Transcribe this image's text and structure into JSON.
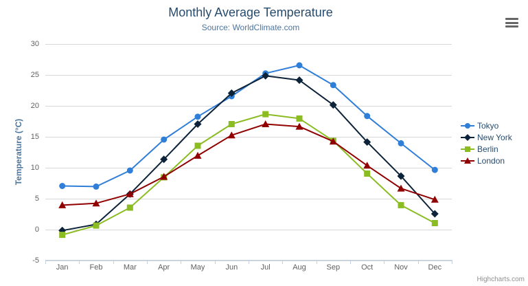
{
  "chart": {
    "context_button": "hamburger-menu"
  },
  "chart_data": {
    "type": "line",
    "title": "Monthly Average Temperature",
    "subtitle": "Source: WorldClimate.com",
    "xlabel": "",
    "ylabel": "Temperature (°C)",
    "ylim": [
      -5,
      30
    ],
    "yticks": [
      -5,
      0,
      5,
      10,
      15,
      20,
      25,
      30
    ],
    "grid": true,
    "legend_position": "right",
    "credits": "Highcharts.com",
    "categories": [
      "Jan",
      "Feb",
      "Mar",
      "Apr",
      "May",
      "Jun",
      "Jul",
      "Aug",
      "Sep",
      "Oct",
      "Nov",
      "Dec"
    ],
    "series": [
      {
        "name": "Tokyo",
        "color": "#2f7ed8",
        "marker": "circle",
        "values": [
          7.0,
          6.9,
          9.5,
          14.5,
          18.2,
          21.5,
          25.2,
          26.5,
          23.3,
          18.3,
          13.9,
          9.6
        ]
      },
      {
        "name": "New York",
        "color": "#0d233a",
        "marker": "diamond",
        "values": [
          -0.2,
          0.8,
          5.7,
          11.3,
          17.0,
          22.0,
          24.8,
          24.1,
          20.1,
          14.1,
          8.6,
          2.5
        ]
      },
      {
        "name": "Berlin",
        "color": "#8bbc21",
        "marker": "square",
        "values": [
          -0.9,
          0.6,
          3.5,
          8.4,
          13.5,
          17.0,
          18.6,
          17.9,
          14.3,
          9.0,
          3.9,
          1.0
        ]
      },
      {
        "name": "London",
        "color": "#910000",
        "marker": "triangle",
        "values": [
          3.9,
          4.2,
          5.7,
          8.5,
          11.9,
          15.2,
          17.0,
          16.6,
          14.2,
          10.3,
          6.6,
          4.8
        ]
      }
    ],
    "style": {
      "grid_color": "#D8D8D8",
      "axis_line_color": "#C0D0E0",
      "tick_color": "#C0D0E0",
      "axis_label_color": "#606060",
      "title_color": "#274b6d",
      "subtitle_color": "#4d759e",
      "axis_title_color": "#4d759e",
      "legend_text_color": "#274b6d",
      "credits_color": "#909090"
    }
  }
}
